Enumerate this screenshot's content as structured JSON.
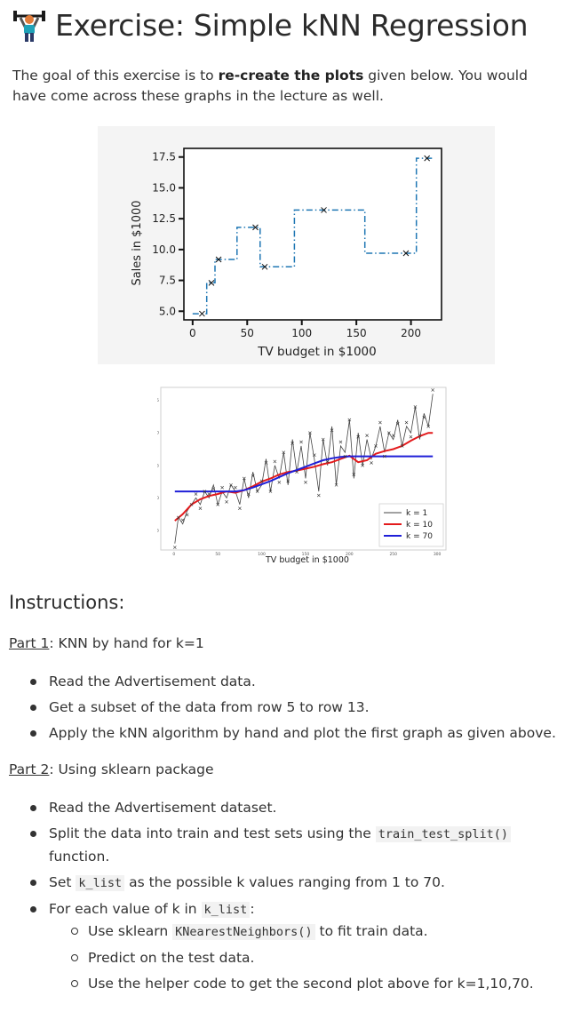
{
  "header": {
    "title": "Exercise: Simple kNN Regression"
  },
  "intro": {
    "text_before": "The goal of this exercise is to ",
    "bold": "re-create the plots",
    "text_after": " given below. You would have come across these graphs in the lecture as well."
  },
  "instructions": {
    "heading": "Instructions:",
    "part1": {
      "label": "Part 1",
      "text": ": KNN by hand for k=1"
    },
    "part1_items": [
      "Read the Advertisement data.",
      "Get a subset of the data from row 5 to row 13.",
      "Apply the kNN algorithm by hand and plot the first graph as given above."
    ],
    "part2": {
      "label": "Part 2",
      "text": ": Using sklearn package"
    },
    "part2_items": {
      "i1": "Read the Advertisement dataset.",
      "i2_before": "Split the data into train and test sets using the ",
      "i2_code": "train_test_split()",
      "i2_after": " function.",
      "i3_before": "Set ",
      "i3_code": "k_list",
      "i3_after": " as the possible k values ranging from 1 to 70.",
      "i4_before": "For each value of k in ",
      "i4_code": "k_list",
      "i4_after": ":"
    },
    "part2_sub": {
      "s1_before": "Use sklearn ",
      "s1_code": "KNearestNeighbors()",
      "s1_after": " to fit train data.",
      "s2": "Predict on the test data.",
      "s3": "Use the helper code to get the second plot above for k=1,10,70."
    }
  },
  "chart_data": [
    {
      "type": "line",
      "title": "",
      "xlabel": "TV budget in $1000",
      "ylabel": "Sales in $1000",
      "xlim": [
        -8,
        228
      ],
      "ylim": [
        4.3,
        18.2
      ],
      "xticks": [
        "0",
        "50",
        "100",
        "150",
        "200"
      ],
      "xtick_values": [
        0,
        50,
        100,
        150,
        200
      ],
      "yticks": [
        "5.0",
        "7.5",
        "10.0",
        "12.5",
        "15.0",
        "17.5"
      ],
      "ytick_values": [
        5.0,
        7.5,
        10.0,
        12.5,
        15.0,
        17.5
      ],
      "points": [
        {
          "x": 8.6,
          "y": 4.8
        },
        {
          "x": 17.2,
          "y": 7.3
        },
        {
          "x": 23.8,
          "y": 9.2
        },
        {
          "x": 57.5,
          "y": 11.8
        },
        {
          "x": 66.1,
          "y": 8.6
        },
        {
          "x": 120.2,
          "y": 13.2
        },
        {
          "x": 195.4,
          "y": 9.7
        },
        {
          "x": 214.7,
          "y": 17.4
        }
      ],
      "step_line": [
        [
          0,
          4.8
        ],
        [
          12.9,
          4.8
        ],
        [
          12.9,
          7.3
        ],
        [
          20.5,
          7.3
        ],
        [
          20.5,
          9.2
        ],
        [
          40.7,
          9.2
        ],
        [
          40.7,
          11.8
        ],
        [
          61.8,
          11.8
        ],
        [
          61.8,
          8.6
        ],
        [
          93.2,
          8.6
        ],
        [
          93.2,
          13.2
        ],
        [
          157.8,
          13.2
        ],
        [
          157.8,
          9.7
        ],
        [
          205,
          9.7
        ],
        [
          205,
          17.4
        ],
        [
          220,
          17.4
        ]
      ],
      "line_color": "#1f77b4",
      "background": "#f4f4f4"
    },
    {
      "type": "line",
      "title": "",
      "xlabel": "TV budget in $1000",
      "ylabel": "Sales in $1000",
      "xlim": [
        -15,
        310
      ],
      "ylim": [
        2,
        27
      ],
      "xticks": [
        "0",
        "50",
        "100",
        "150",
        "200",
        "250",
        "300"
      ],
      "xtick_values": [
        0,
        50,
        100,
        150,
        200,
        250,
        300
      ],
      "yticks": [
        "5",
        "10",
        "15",
        "20",
        "25"
      ],
      "ytick_values": [
        5,
        10,
        15,
        20,
        25
      ],
      "series": [
        {
          "name": "k = 1",
          "color": "#444444",
          "x": [
            1,
            5,
            10,
            15,
            20,
            25,
            30,
            35,
            40,
            45,
            50,
            55,
            60,
            65,
            70,
            75,
            80,
            85,
            90,
            95,
            100,
            105,
            110,
            115,
            120,
            125,
            130,
            135,
            140,
            145,
            150,
            155,
            160,
            165,
            170,
            175,
            180,
            185,
            190,
            195,
            200,
            205,
            210,
            215,
            220,
            225,
            230,
            235,
            240,
            245,
            250,
            255,
            260,
            265,
            270,
            275,
            280,
            285,
            290,
            295
          ],
          "y": [
            3,
            7,
            6,
            8,
            9,
            10,
            9,
            11,
            10,
            12,
            9,
            11,
            10,
            12,
            11,
            9,
            13,
            10,
            14,
            11,
            12,
            16,
            11,
            15,
            13,
            17,
            12,
            19,
            14,
            18,
            13,
            20,
            16,
            11,
            19,
            15,
            21,
            12,
            18,
            17,
            22,
            13,
            20,
            15,
            19,
            16,
            18,
            21,
            17,
            20,
            19,
            22,
            18,
            21,
            20,
            24,
            19,
            23,
            21,
            26
          ]
        },
        {
          "name": "k = 10",
          "color": "#e31a1c",
          "x": [
            1,
            10,
            20,
            30,
            40,
            50,
            60,
            70,
            80,
            90,
            100,
            110,
            120,
            130,
            140,
            150,
            160,
            170,
            180,
            190,
            200,
            210,
            220,
            230,
            240,
            250,
            260,
            270,
            280,
            290,
            295
          ],
          "y": [
            6.5,
            7.5,
            9,
            9.8,
            10.3,
            10.6,
            11,
            10.8,
            11.2,
            11.8,
            12.5,
            13,
            13.6,
            14,
            14.2,
            14.5,
            14.8,
            15.2,
            15.5,
            16,
            16.5,
            15.5,
            15.8,
            16.8,
            17.2,
            17.5,
            18,
            18.8,
            19.5,
            20,
            20
          ]
        },
        {
          "name": "k = 70",
          "color": "#1f1fd8",
          "x": [
            1,
            70,
            80,
            90,
            100,
            110,
            120,
            130,
            140,
            150,
            160,
            170,
            180,
            190,
            200,
            295
          ],
          "y": [
            11,
            11,
            11.2,
            11.6,
            12.1,
            12.6,
            13.2,
            13.8,
            14.3,
            14.8,
            15.3,
            15.8,
            16.1,
            16.3,
            16.4,
            16.4
          ]
        }
      ],
      "legend_position": "bottom-right",
      "grid": false
    }
  ]
}
